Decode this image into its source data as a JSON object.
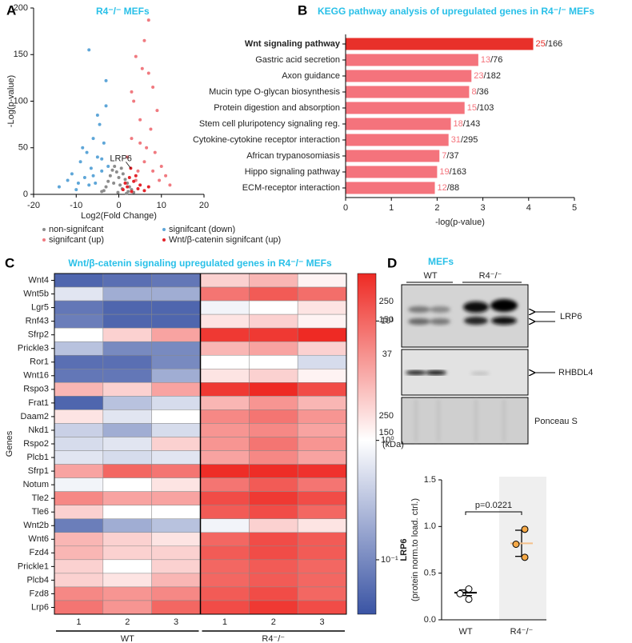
{
  "panels": [
    "A",
    "B",
    "C",
    "D"
  ],
  "chart_data": [
    {
      "type": "scatter",
      "title": "R4⁻/⁻ MEFs",
      "xlabel": "Log2(Fold Change)",
      "ylabel": "-Log(p-value)",
      "xlim": [
        -20,
        20
      ],
      "ylim": [
        0,
        200
      ],
      "xticks": [
        -20,
        -10,
        0,
        10,
        20
      ],
      "yticks": [
        0,
        50,
        100,
        150,
        200
      ],
      "annotation": {
        "text": "LRP6",
        "x": 2.8,
        "y": 28
      },
      "series": [
        {
          "name": "non-signifcant",
          "color": "#8c8c8c",
          "x": [
            -4,
            -3,
            -2.5,
            -2,
            -1.5,
            -1,
            -0.5,
            0,
            0.3,
            0.6,
            1,
            1.5,
            2,
            2.5,
            3,
            3.5,
            -3.5,
            -1.2,
            0.8,
            1.8,
            -0.2,
            2.2
          ],
          "values": [
            3,
            8,
            14,
            20,
            26,
            30,
            24,
            18,
            10,
            28,
            22,
            16,
            12,
            8,
            5,
            2,
            4,
            12,
            6,
            1,
            2,
            3
          ]
        },
        {
          "name": "signifcant (down)",
          "color": "#5ea6d8",
          "x": [
            -14,
            -12,
            -11,
            -10,
            -9,
            -8,
            -7.5,
            -7,
            -6.5,
            -6,
            -5.5,
            -5,
            -4.5,
            -4,
            -3.5,
            -3,
            -2.5,
            -7,
            -3,
            -8.5,
            -5,
            -6,
            -4,
            -9.5
          ],
          "values": [
            8,
            15,
            22,
            5,
            35,
            18,
            45,
            155,
            28,
            60,
            12,
            40,
            75,
            25,
            55,
            122,
            30,
            10,
            95,
            50,
            85,
            20,
            38,
            12
          ]
        },
        {
          "name": "signifcant (up)",
          "color": "#f07a80",
          "x": [
            2,
            3,
            3.5,
            4,
            4.5,
            5,
            5.5,
            6,
            6.5,
            7,
            7.5,
            8,
            8.5,
            9,
            10,
            11,
            12,
            6,
            7,
            4,
            5,
            8,
            9.5,
            3
          ],
          "values": [
            40,
            60,
            100,
            148,
            25,
            80,
            135,
            165,
            50,
            187,
            70,
            115,
            45,
            90,
            30,
            20,
            10,
            35,
            130,
            15,
            55,
            25,
            15,
            110
          ]
        },
        {
          "name": "Wnt/β-catenin signifcant (up)",
          "color": "#e3242b",
          "x": [
            1,
            1.5,
            2,
            2.5,
            3,
            3.5,
            4,
            4.5,
            5,
            6,
            7,
            2.8
          ],
          "values": [
            5,
            12,
            8,
            18,
            3,
            14,
            20,
            6,
            10,
            4,
            8,
            28
          ]
        }
      ]
    },
    {
      "type": "barh",
      "title": "KEGG pathway analysis of upregulated genes in R4⁻/⁻ MEFs",
      "xlabel": "-log(p-value)",
      "xlim": [
        0,
        5
      ],
      "xticks": [
        0,
        1,
        2,
        3,
        4,
        5
      ],
      "categories": [
        "Wnt signaling pathway",
        "Gastric acid secretion",
        "Axon guidance",
        "Mucin type O-glycan biosynthesis",
        "Protein digestion and absorption",
        "Stem cell pluripotency signaling reg.",
        "Cytokine-cytokine receptor interaction",
        "African trypanosomiasis",
        "Hippo signaling pathway",
        "ECM-receptor interaction"
      ],
      "values": [
        4.1,
        2.9,
        2.75,
        2.7,
        2.6,
        2.3,
        2.25,
        2.05,
        2.0,
        1.95
      ],
      "colors": [
        "#e8302a",
        "#f4737c",
        "#f4737c",
        "#f4737c",
        "#f4737c",
        "#f4737c",
        "#f4737c",
        "#f4737c",
        "#f4737c",
        "#f4737c"
      ],
      "bold": [
        true,
        false,
        false,
        false,
        false,
        false,
        false,
        false,
        false,
        false
      ],
      "hit_labels": [
        "25",
        "13",
        "23",
        "8",
        "15",
        "18",
        "31",
        "7",
        "19",
        "12"
      ],
      "size_labels": [
        "/166",
        "/76",
        "/182",
        "/36",
        "/103",
        "/143",
        "/295",
        "/37",
        "/163",
        "/88"
      ]
    },
    {
      "type": "heatmap",
      "title": "Wnt/β-catenin signaling upregulated genes in R4⁻/⁻ MEFs",
      "ylabel": "Genes",
      "rows": [
        "Wnt4",
        "Wnt5b",
        "Lgr5",
        "Rnf43",
        "Sfrp2",
        "Prickle3",
        "Ror1",
        "Wnt16",
        "Rspo3",
        "Frat1",
        "Daam2",
        "Nkd1",
        "Rspo2",
        "Plcb1",
        "Sfrp1",
        "Notum",
        "Tle2",
        "Tle6",
        "Wnt2b",
        "Wnt6",
        "Fzd4",
        "Prickle1",
        "Plcb4",
        "Fzd8",
        "Lrp6"
      ],
      "columns": [
        "1",
        "2",
        "3",
        "1",
        "2",
        "3"
      ],
      "groups": [
        "WT",
        "R4⁻/⁻"
      ],
      "values": [
        [
          0.05,
          0.06,
          0.07,
          2,
          3,
          1.2
        ],
        [
          0.6,
          0.2,
          0.2,
          8,
          12,
          9
        ],
        [
          0.07,
          0.05,
          0.05,
          0.8,
          1,
          1.5
        ],
        [
          0.08,
          0.05,
          0.05,
          1.5,
          2,
          1.2
        ],
        [
          1,
          2,
          4,
          20,
          20,
          25
        ],
        [
          0.3,
          0.1,
          0.1,
          3,
          4,
          2
        ],
        [
          0.06,
          0.06,
          0.1,
          1,
          1,
          0.5
        ],
        [
          0.07,
          0.07,
          0.2,
          1.5,
          2,
          1.2
        ],
        [
          3,
          2,
          4,
          20,
          25,
          15
        ],
        [
          0.05,
          0.3,
          0.5,
          3,
          5,
          3
        ],
        [
          1.5,
          0.6,
          1,
          6,
          8,
          5
        ],
        [
          0.4,
          0.2,
          0.5,
          5,
          6,
          4
        ],
        [
          0.5,
          0.6,
          2,
          5,
          8,
          5
        ],
        [
          0.6,
          0.5,
          0.6,
          4,
          6,
          4
        ],
        [
          4,
          10,
          8,
          24,
          24,
          22
        ],
        [
          0.8,
          1,
          1.5,
          8,
          12,
          8
        ],
        [
          6,
          4,
          4,
          15,
          20,
          15
        ],
        [
          2,
          1,
          1,
          12,
          15,
          10
        ],
        [
          0.08,
          0.2,
          0.3,
          0.8,
          2,
          1.5
        ],
        [
          3,
          2,
          1.5,
          10,
          15,
          12
        ],
        [
          3,
          2,
          2,
          12,
          15,
          12
        ],
        [
          2,
          1,
          2,
          10,
          12,
          10
        ],
        [
          2,
          1.5,
          3,
          10,
          12,
          10
        ],
        [
          6,
          5,
          6,
          12,
          15,
          10
        ],
        [
          8,
          5,
          10,
          15,
          20,
          15
        ]
      ],
      "clim": [
        0.035,
        25
      ],
      "log": true,
      "colors": [
        "#3a54a4",
        "#ffffff",
        "#ee2a24"
      ],
      "cticks": [
        {
          "value": 10,
          "label": "10¹"
        },
        {
          "value": 1,
          "label": "10⁰"
        },
        {
          "value": 0.1,
          "label": "10⁻¹"
        }
      ]
    },
    {
      "type": "dotplot",
      "ylabel": "LRP6",
      "ylabel2": "(protein norm.to load. ctrl.)",
      "annotation": "p=0.0221",
      "categories": [
        "WT",
        "R4⁻/⁻"
      ],
      "ylim": [
        0,
        1.5
      ],
      "yticks": [
        {
          "value": 0,
          "label": "0.0"
        },
        0.5,
        {
          "value": 1,
          "label": "1.0"
        },
        1.5
      ],
      "points": [
        [
          0.33,
          0.28,
          0.22
        ],
        [
          0.97,
          0.81,
          0.67
        ]
      ],
      "means": [
        0.29,
        0.82
      ],
      "sems": [
        0.03,
        0.14
      ],
      "colors": [
        "#ffffff",
        "#f5a947"
      ],
      "mean_colors": [
        "#000000",
        "#f5c08a"
      ]
    }
  ],
  "blot": {
    "title": "MEFs",
    "groups": [
      "WT",
      "R4⁻/⁻"
    ],
    "markers": [
      "250",
      "150",
      "37",
      "250",
      "150"
    ],
    "unit": "(kDa)",
    "labels": [
      "LRP6",
      "RHBDL4",
      "Ponceau S"
    ]
  }
}
